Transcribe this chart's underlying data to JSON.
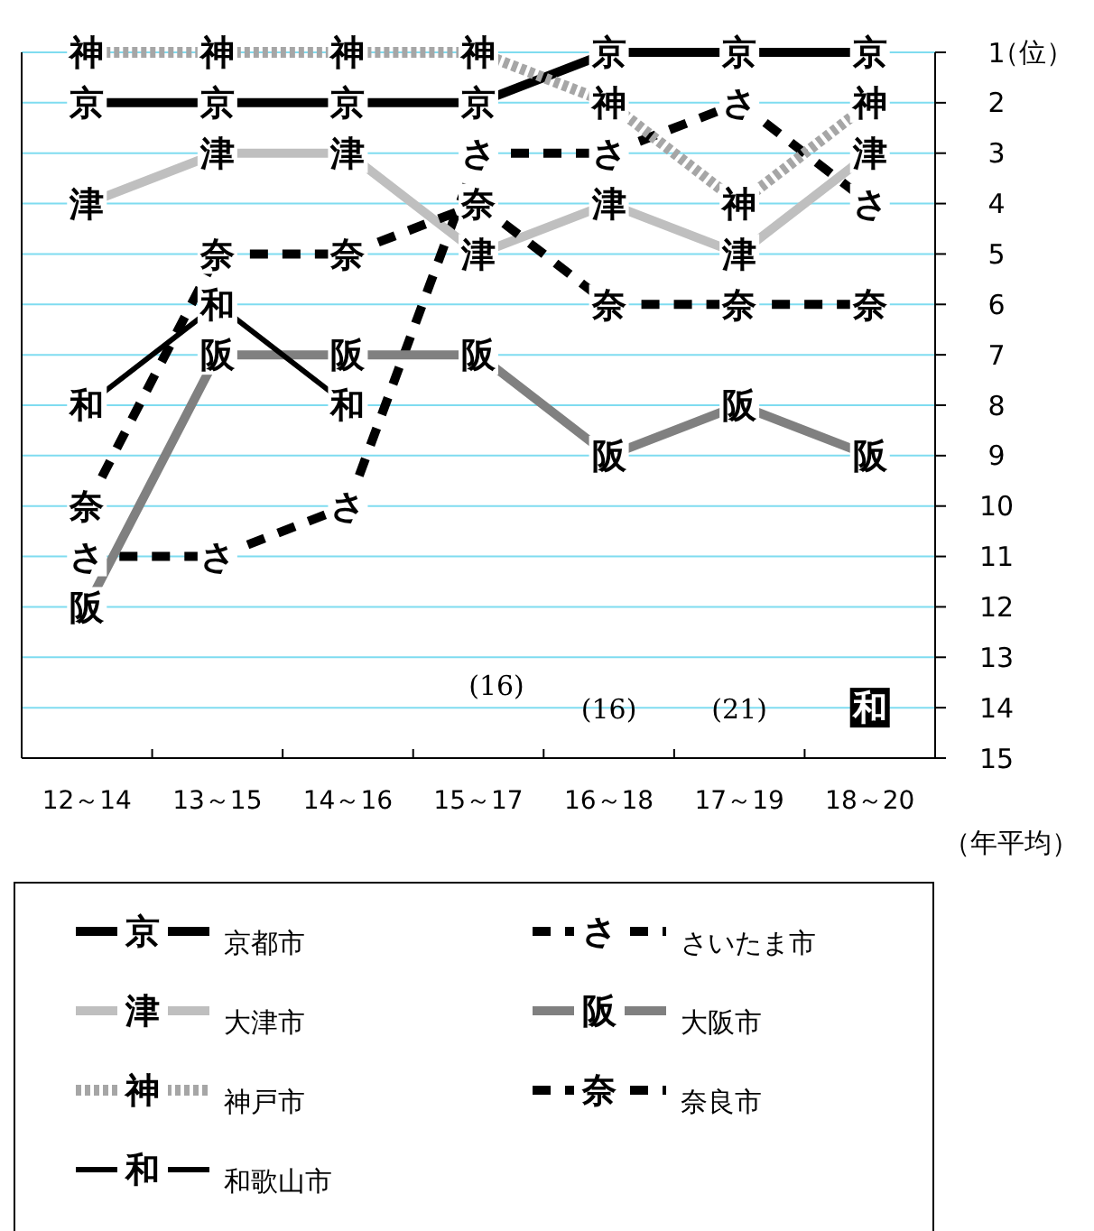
{
  "chart_data": {
    "type": "line",
    "categories": [
      "12～14",
      "13～15",
      "14～16",
      "15～17",
      "16～18",
      "17～19",
      "18～20"
    ],
    "ylim": [
      15,
      1
    ],
    "yticks": [
      1,
      2,
      3,
      4,
      5,
      6,
      7,
      8,
      9,
      10,
      11,
      12,
      13,
      14,
      15
    ],
    "ylabel": "（位）",
    "xlabel": "（年平均）",
    "grid": "y",
    "legend": "bottom",
    "marker": "square",
    "series": [
      {
        "name": "京都市",
        "color": "#000000",
        "line_style": "solid",
        "values": [
          2,
          2,
          2,
          2,
          1,
          1,
          1
        ],
        "value_labels": [
          "京",
          "京",
          "京",
          "京",
          "京",
          "京",
          "京"
        ]
      },
      {
        "name": "さいたま市",
        "color": "#000000",
        "line_style": "dashed",
        "values": [
          11,
          11,
          10,
          3,
          3,
          2,
          4
        ],
        "value_labels": [
          "さ",
          "さ",
          "さ",
          "さ",
          "さ",
          "さ",
          "さ"
        ]
      },
      {
        "name": "大津市",
        "color": "#bfbfbf",
        "line_style": "solid",
        "values": [
          4,
          3,
          3,
          5,
          4,
          5,
          3
        ],
        "value_labels": [
          "津",
          "津",
          "津",
          "津",
          "津",
          "津",
          "津"
        ]
      },
      {
        "name": "大阪市",
        "color": "#808080",
        "line_style": "solid",
        "values": [
          12,
          7,
          7,
          7,
          9,
          8,
          9
        ],
        "value_labels": [
          "阪",
          "阪",
          "阪",
          "阪",
          "阪",
          "阪",
          "阪"
        ]
      },
      {
        "name": "神戸市",
        "color": "#a6a6a6",
        "line_style": "dotted",
        "values": [
          1,
          1,
          1,
          1,
          2,
          4,
          2
        ],
        "value_labels": [
          "神",
          "神",
          "神",
          "神",
          "神",
          "神",
          "神"
        ]
      },
      {
        "name": "奈良市",
        "color": "#000000",
        "line_style": "dashed",
        "values": [
          10,
          5,
          5,
          4,
          6,
          6,
          6
        ],
        "value_labels": [
          "奈",
          "奈",
          "奈",
          "奈",
          "奈",
          "奈",
          "奈"
        ]
      },
      {
        "name": "和歌山市",
        "color": "#000000",
        "line_style": "solid",
        "values": [
          8,
          6,
          8,
          null,
          null,
          null,
          14
        ],
        "value_labels": [
          "和",
          "和",
          "和",
          null,
          null,
          null,
          "和"
        ]
      }
    ],
    "annotations": [
      "(16)",
      "(16)",
      "(21)"
    ]
  }
}
